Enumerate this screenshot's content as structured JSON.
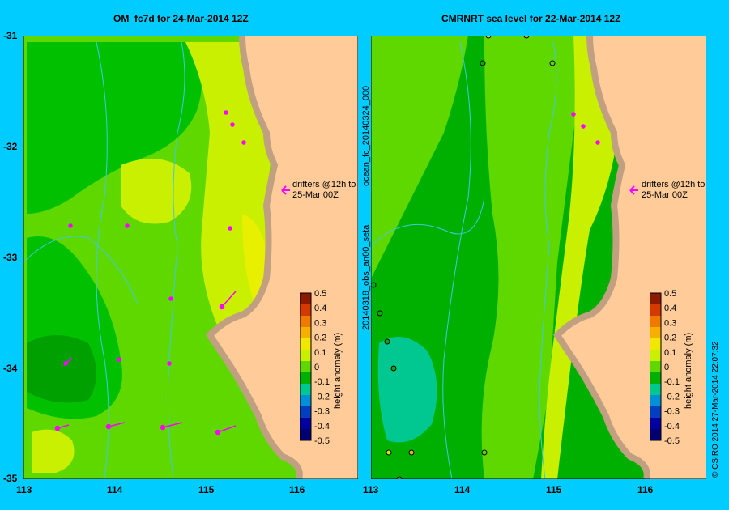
{
  "panels": [
    {
      "id": "left",
      "title": "OM_fc7d for 24-Mar-2014 12Z",
      "annotation": [
        "drifters @12h to",
        "25-Mar 00Z"
      ]
    },
    {
      "id": "right",
      "title": "CMRNRT sea level  for 22-Mar-2014 12Z",
      "annotation": [
        "drifters @12h to",
        "25-Mar 00Z"
      ],
      "side_label_top": "ocean_fc_20140324_000",
      "side_label_bottom": "20140318_obs_an00_seta"
    }
  ],
  "axes": {
    "x_ticks": [
      "113",
      "114",
      "115",
      "116"
    ],
    "y_ticks": [
      "-31",
      "-32",
      "-33",
      "-34",
      "-35"
    ]
  },
  "colorbar": {
    "label": "height anomaly (m)",
    "ticks": [
      "0.5",
      "0.4",
      "0.3",
      "0.2",
      "0.1",
      "0",
      "-0.1",
      "-0.2",
      "-0.3",
      "-0.4",
      "-0.5"
    ],
    "colors": [
      "#8b1a00",
      "#d43a00",
      "#f07a00",
      "#f7b000",
      "#f0e800",
      "#c8f000",
      "#5fd800",
      "#00b000",
      "#00c890",
      "#0090d8",
      "#0040c0",
      "#0000a0",
      "#000070"
    ]
  },
  "footer": "© CSIRO 2014   27-Mar-2014 22:07:32",
  "colors": {
    "background": "#00ccff",
    "land": "#ffcc99",
    "coast": "#c0a080",
    "drifter": "#ff00ff",
    "river": "#40c8e0"
  }
}
